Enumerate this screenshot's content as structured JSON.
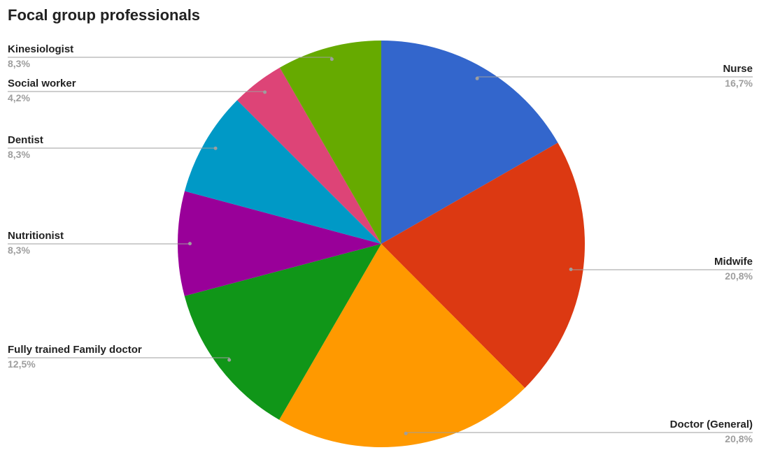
{
  "chart_data": {
    "type": "pie",
    "title": "Focal group professionals",
    "slices": [
      {
        "label": "Nurse",
        "value": 16.7,
        "display": "16,7%",
        "color": "#3366cc",
        "side": "right"
      },
      {
        "label": "Midwife",
        "value": 20.8,
        "display": "20,8%",
        "color": "#dc3912",
        "side": "right"
      },
      {
        "label": "Doctor (General)",
        "value": 20.8,
        "display": "20,8%",
        "color": "#ff9900",
        "side": "right"
      },
      {
        "label": "Fully trained Family doctor",
        "value": 12.5,
        "display": "12,5%",
        "color": "#109618",
        "side": "left"
      },
      {
        "label": "Nutritionist",
        "value": 8.3,
        "display": "8,3%",
        "color": "#990099",
        "side": "left"
      },
      {
        "label": "Dentist",
        "value": 8.3,
        "display": "8,3%",
        "color": "#0099c6",
        "side": "left"
      },
      {
        "label": "Social worker",
        "value": 4.2,
        "display": "4,2%",
        "color": "#dd4477",
        "side": "left"
      },
      {
        "label": "Kinesiologist",
        "value": 8.3,
        "display": "8,3%",
        "color": "#66aa00",
        "side": "left"
      }
    ],
    "legend": "labels beside slices with leader lines"
  }
}
